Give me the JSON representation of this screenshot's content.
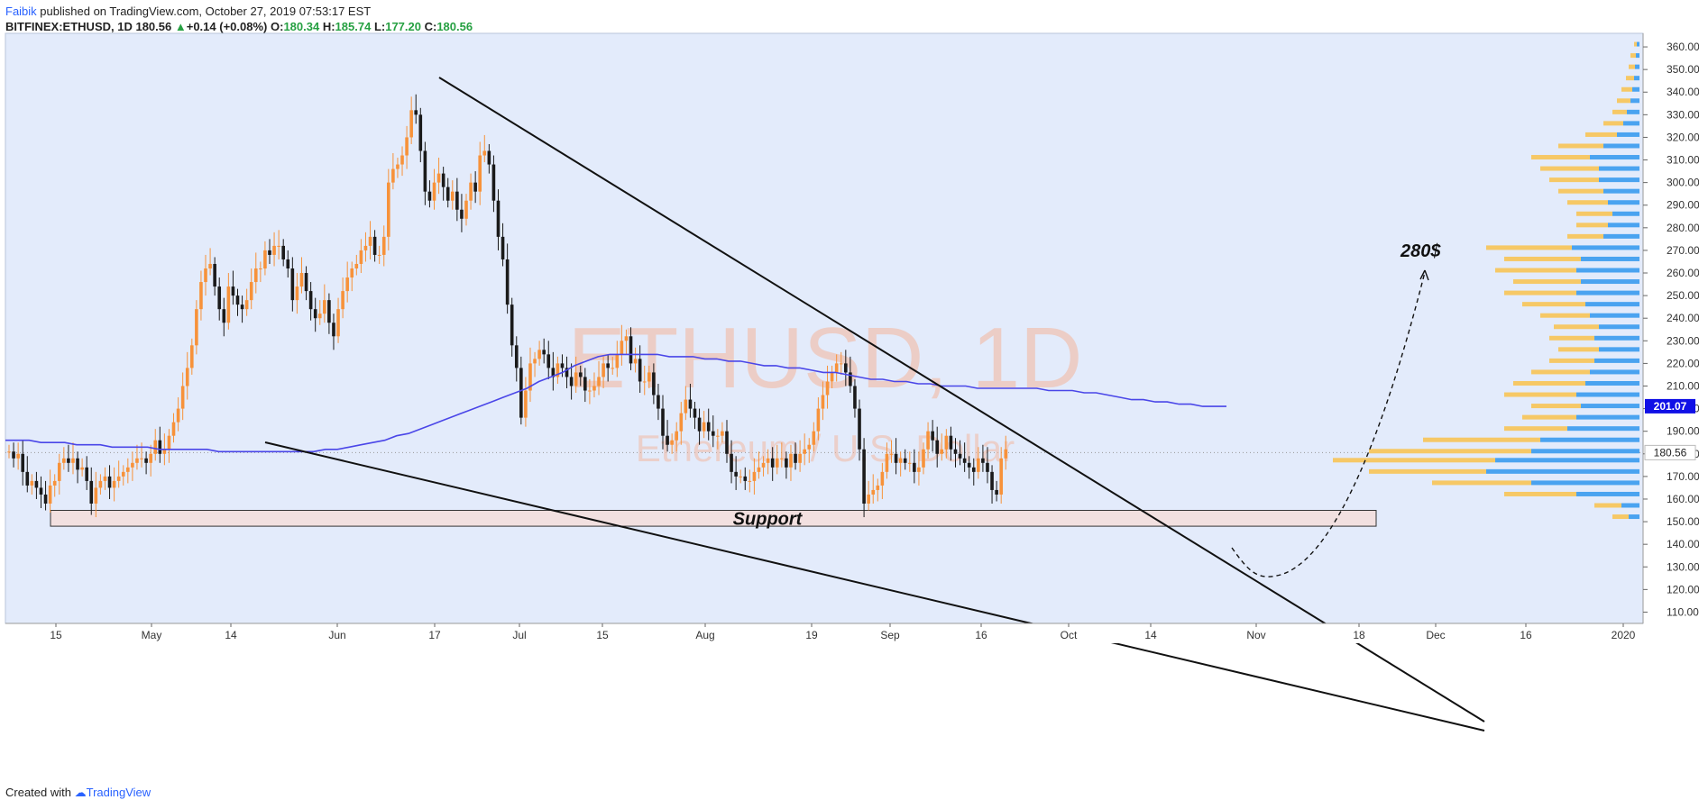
{
  "header": {
    "author": "Faibik",
    "published_text": " published on TradingView.com, October 27, 2019 07:53:17 EST",
    "symbol": "BITFINEX:ETHUSD, 1D",
    "last": "180.56",
    "change": "+0.14 (+0.08%)",
    "o_label": "O:",
    "o_value": "180.34",
    "h_label": "H:",
    "h_value": "185.74",
    "l_label": "L:",
    "l_value": "177.20",
    "c_label": "C:",
    "c_value": "180.56"
  },
  "footer": {
    "created_with": "Created with",
    "brand": "TradingView"
  },
  "colors": {
    "background": "#e3ebfb",
    "bull": "#f7923a",
    "bear": "#1a1a1a",
    "ma": "#4a46e8",
    "vp_up": "#4aa3f0",
    "vp_down": "#f6c866",
    "support_fill": "#f2e0e0",
    "price_tag": "#1010e6"
  },
  "chart_data": {
    "type": "candlestick",
    "watermark": "ETHUSD, 1D",
    "watermark_sub": "Ethereum / U.S. Dollar",
    "x_axis_labels": [
      "15",
      "May",
      "14",
      "Jun",
      "17",
      "Jul",
      "15",
      "Aug",
      "19",
      "Sep",
      "16",
      "Oct",
      "14",
      "Nov",
      "18",
      "Dec",
      "16",
      "2020"
    ],
    "y_axis": {
      "min": 105,
      "max": 366,
      "ticks": [
        110,
        120,
        130,
        140,
        150,
        160,
        170,
        180,
        190,
        200,
        210,
        220,
        230,
        240,
        250,
        260,
        270,
        280,
        290,
        300,
        310,
        320,
        330,
        340,
        350,
        360
      ]
    },
    "last_price_label": "180.56",
    "ma_label": "201.07",
    "support_label": "Support",
    "support_zone": [
      148,
      155
    ],
    "target_label": "280$",
    "closes": [
      181,
      178,
      180,
      172,
      166,
      168,
      165,
      162,
      158,
      166,
      168,
      176,
      178,
      176,
      178,
      173,
      174,
      168,
      158,
      165,
      168,
      170,
      165,
      168,
      170,
      172,
      174,
      176,
      178,
      178,
      176,
      180,
      186,
      180,
      182,
      188,
      194,
      200,
      210,
      218,
      228,
      244,
      256,
      262,
      264,
      254,
      244,
      238,
      254,
      250,
      246,
      244,
      248,
      256,
      262,
      262,
      270,
      268,
      272,
      272,
      266,
      262,
      248,
      254,
      260,
      252,
      244,
      240,
      242,
      248,
      238,
      232,
      244,
      252,
      258,
      262,
      264,
      270,
      272,
      276,
      268,
      268,
      276,
      300,
      306,
      308,
      312,
      320,
      332,
      330,
      314,
      296,
      292,
      300,
      304,
      298,
      292,
      296,
      288,
      284,
      292,
      300,
      296,
      312,
      314,
      308,
      292,
      276,
      266,
      246,
      228,
      218,
      196,
      208,
      220,
      222,
      226,
      224,
      218,
      214,
      220,
      218,
      214,
      210,
      216,
      214,
      208,
      208,
      210,
      214,
      220,
      218,
      218,
      224,
      230,
      232,
      220,
      222,
      212,
      212,
      216,
      206,
      200,
      188,
      184,
      186,
      190,
      198,
      204,
      200,
      196,
      190,
      194,
      190,
      188,
      188,
      190,
      180,
      172,
      170,
      170,
      168,
      168,
      172,
      174,
      176,
      178,
      174,
      178,
      178,
      174,
      180,
      176,
      180,
      182,
      184,
      190,
      200,
      206,
      212,
      216,
      220,
      220,
      216,
      210,
      200,
      182,
      158,
      162,
      164,
      166,
      172,
      180,
      180,
      176,
      178,
      176,
      176,
      172,
      174,
      182,
      190,
      186,
      180,
      182,
      188,
      182,
      180,
      178,
      176,
      174,
      172,
      178,
      176,
      172,
      164,
      162,
      178,
      182
    ],
    "ma200": [
      186,
      186,
      186,
      185,
      185,
      185,
      184,
      184,
      184,
      183,
      183,
      183,
      183,
      182,
      182,
      182,
      182,
      182,
      181,
      181,
      181,
      181,
      181,
      181,
      181,
      181,
      181,
      182,
      182,
      183,
      184,
      185,
      186,
      188,
      189,
      191,
      193,
      195,
      197,
      199,
      201,
      203,
      205,
      207,
      209,
      212,
      214,
      216,
      219,
      221,
      223,
      224,
      224,
      224,
      224,
      224,
      223,
      223,
      223,
      222,
      222,
      221,
      221,
      220,
      219,
      219,
      218,
      218,
      217,
      216,
      216,
      215,
      214,
      213,
      213,
      212,
      212,
      211,
      211,
      210,
      210,
      210,
      209,
      209,
      209,
      209,
      209,
      209,
      208,
      208,
      208,
      207,
      207,
      206,
      205,
      204,
      204,
      203,
      203,
      202,
      202,
      201,
      201,
      201
    ],
    "volume_profile_note": "visible range volume profile on right side"
  }
}
